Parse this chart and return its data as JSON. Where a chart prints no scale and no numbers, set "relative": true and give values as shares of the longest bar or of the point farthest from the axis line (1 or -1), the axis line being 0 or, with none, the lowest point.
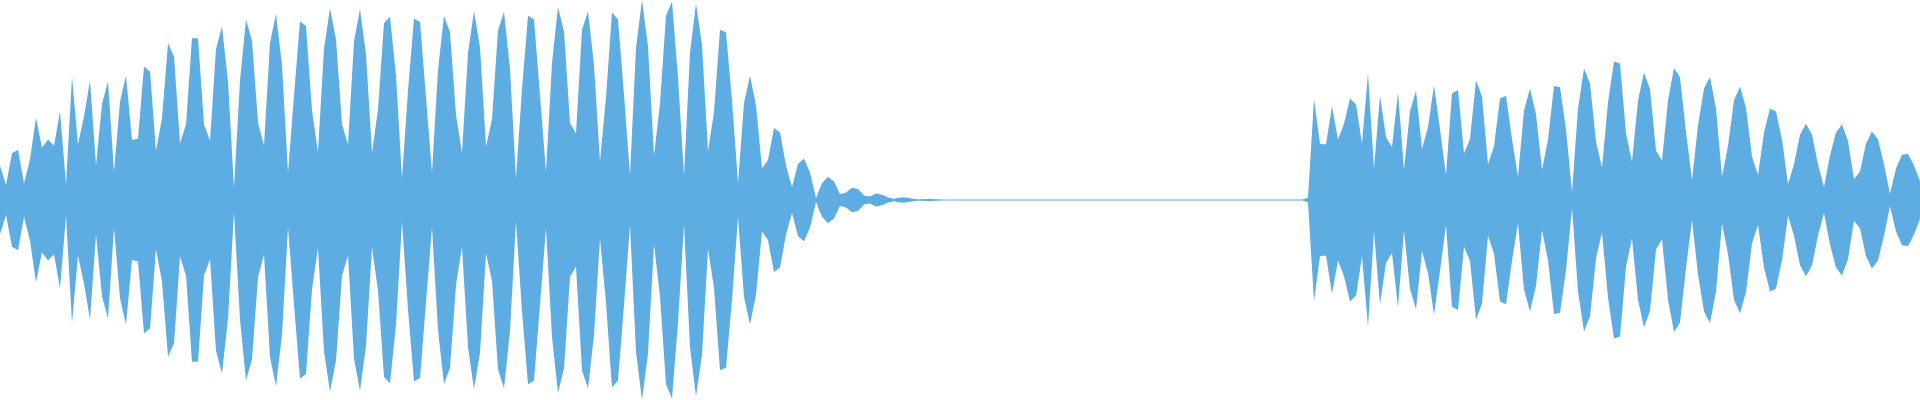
{
  "chart_data": {
    "type": "area",
    "relative": true,
    "categories": [
      null,
      null,
      null,
      null,
      null,
      null,
      null,
      null,
      null,
      null,
      null,
      null,
      null,
      null,
      null,
      null,
      null,
      null,
      null,
      null,
      null,
      null,
      null,
      null,
      null,
      null,
      null,
      null,
      null,
      null,
      null,
      null,
      null,
      null,
      null,
      null,
      null,
      null,
      null,
      null,
      null,
      null,
      null,
      null,
      null,
      null,
      null,
      null,
      null,
      null,
      null,
      null,
      null,
      null,
      null,
      null,
      null,
      null,
      null,
      null,
      null,
      null,
      null,
      null,
      null,
      null,
      null,
      null,
      null,
      null,
      null,
      null,
      null,
      null,
      null,
      null,
      null,
      null,
      null,
      null,
      null,
      null,
      null,
      null,
      null,
      null,
      null,
      null,
      null,
      null,
      null,
      null,
      null,
      null,
      null,
      null,
      null,
      null,
      null,
      null,
      null,
      null,
      null,
      null,
      null,
      null,
      null,
      null,
      null,
      null,
      null,
      null,
      null,
      null,
      null,
      null,
      null,
      null,
      null,
      null,
      null,
      null,
      null,
      null,
      null,
      null,
      null,
      null,
      null,
      null,
      null,
      null,
      null,
      null,
      null,
      null,
      null,
      null,
      null,
      null,
      null,
      null,
      null,
      null,
      null,
      null,
      null,
      null,
      null,
      null,
      null,
      null,
      null,
      null,
      null,
      null,
      null,
      null,
      null,
      null,
      null,
      null,
      null,
      null,
      null,
      null,
      null,
      null,
      null,
      null,
      null,
      null,
      null,
      null,
      null,
      null,
      null,
      null,
      null,
      null,
      null,
      null,
      null,
      null,
      null,
      null,
      null,
      null,
      null,
      null,
      null,
      null,
      null,
      null,
      null,
      null,
      null,
      null,
      null,
      null,
      null,
      null,
      null,
      null,
      null,
      null,
      null,
      null,
      null,
      null,
      null,
      null,
      null,
      null,
      null,
      null,
      null,
      null,
      null,
      null,
      null,
      null,
      null,
      null,
      null,
      null,
      null,
      null,
      null,
      null,
      null,
      null,
      null,
      null,
      null,
      null,
      null,
      null,
      null,
      null,
      null,
      null,
      null,
      null,
      null,
      null,
      null,
      null,
      null,
      null,
      null,
      null,
      null,
      null,
      null,
      null,
      null,
      null,
      null,
      null,
      null,
      null,
      null,
      null,
      null,
      null,
      null,
      null,
      null,
      null,
      null,
      null,
      null,
      null,
      null,
      null,
      null,
      null,
      null,
      null,
      null,
      null,
      null,
      null,
      null,
      null,
      null,
      null,
      null,
      null,
      null,
      null,
      null,
      null,
      null,
      null,
      null,
      null,
      null,
      null,
      null,
      null,
      null,
      null,
      null,
      null,
      null,
      null,
      null,
      null,
      null,
      null,
      null,
      null,
      null,
      null,
      null,
      null,
      null,
      null,
      null
    ],
    "ref_lines": [
      {
        "axis": "y",
        "value": 0,
        "color": "#5dade2"
      }
    ],
    "series": [
      {
        "color": "#5dade2",
        "values": [
          0.171,
          0.075,
          0.234,
          0.251,
          0.084,
          0.204,
          0.411,
          0.261,
          0.303,
          0.271,
          0.442,
          0.079,
          0.615,
          0.279,
          0.418,
          0.597,
          0.173,
          0.481,
          0.593,
          0.141,
          0.491,
          0.623,
          0.299,
          0.308,
          0.666,
          0.642,
          0.246,
          0.409,
          0.782,
          0.717,
          0.283,
          0.377,
          0.809,
          0.809,
          0.377,
          0.297,
          0.754,
          0.868,
          0.593,
          0.061,
          0.597,
          0.902,
          0.798,
          0.387,
          0.271,
          0.786,
          0.931,
          0.674,
          0.136,
          0.523,
          0.894,
          0.87,
          0.446,
          0.24,
          0.756,
          0.959,
          0.802,
          0.379,
          0.277,
          0.792,
          0.955,
          0.727,
          0.238,
          0.452,
          0.884,
          0.916,
          0.623,
          0.108,
          0.548,
          0.908,
          0.89,
          0.513,
          0.136,
          0.65,
          0.921,
          0.839,
          0.424,
          0.236,
          0.735,
          0.945,
          0.764,
          0.265,
          0.405,
          0.847,
          0.941,
          0.654,
          0.108,
          0.556,
          0.923,
          0.902,
          0.521,
          0.141,
          0.684,
          0.965,
          0.843,
          0.385,
          0.332,
          0.851,
          0.943,
          0.674,
          0.193,
          0.515,
          0.937,
          0.902,
          0.525,
          0.124,
          0.76,
          1,
          0.768,
          0.22,
          0.483,
          0.921,
          0.992,
          0.613,
          0.122,
          0.735,
          0.982,
          0.774,
          0.244,
          0.44,
          0.851,
          0.839,
          0.497,
          0.084,
          0.485,
          0.621,
          0.472,
          0.157,
          0.2,
          0.36,
          0.338,
          0.173,
          0.065,
          0.181,
          0.206,
          0.138,
          0.01,
          0.084,
          0.116,
          0.092,
          0.029,
          0.037,
          0.061,
          0.055,
          0.022,
          0.018,
          0.033,
          0.026,
          0.012,
          0.006,
          0.012,
          0.012,
          0.008,
          0.002,
          0.004,
          0.006,
          0.002,
          0,
          0,
          0,
          0,
          0,
          0,
          0,
          0,
          0,
          0,
          0,
          0,
          0,
          0,
          0,
          0,
          0,
          0,
          0,
          0,
          0,
          0,
          0,
          0,
          0,
          0,
          0,
          0,
          0,
          0,
          0,
          0,
          0,
          0,
          0,
          0,
          0,
          0,
          0,
          0,
          0,
          0,
          0,
          0,
          0,
          0,
          0,
          0,
          0,
          0,
          0,
          0,
          0,
          0,
          0,
          0,
          0,
          0,
          0,
          0,
          0,
          0.012,
          0.505,
          0.281,
          0.277,
          0.47,
          0.303,
          0.381,
          0.507,
          0.479,
          0.283,
          0.633,
          0.159,
          0.523,
          0.314,
          0.265,
          0.538,
          0.153,
          0.444,
          0.546,
          0.255,
          0.365,
          0.574,
          0.354,
          0.124,
          0.534,
          0.55,
          0.232,
          0.305,
          0.599,
          0.517,
          0.179,
          0.269,
          0.507,
          0.521,
          0.303,
          0.118,
          0.448,
          0.558,
          0.428,
          0.151,
          0.301,
          0.57,
          0.564,
          0.352,
          0.041,
          0.456,
          0.658,
          0.582,
          0.291,
          0.163,
          0.487,
          0.692,
          0.682,
          0.332,
          0.193,
          0.497,
          0.637,
          0.554,
          0.248,
          0.196,
          0.499,
          0.66,
          0.613,
          0.34,
          0.1,
          0.373,
          0.558,
          0.615,
          0.458,
          0.118,
          0.271,
          0.499,
          0.568,
          0.46,
          0.216,
          0.124,
          0.338,
          0.458,
          0.442,
          0.301,
          0.079,
          0.179,
          0.326,
          0.381,
          0.326,
          0.179,
          0.065,
          0.222,
          0.338,
          0.377,
          0.295,
          0.104,
          0.143,
          0.281,
          0.342,
          0.303,
          0.177,
          0.031,
          0.157,
          0.226,
          0.23,
          0.173,
          0.094
        ]
      },
      {
        "color": "#5dade2",
        "values": [
          -0.171,
          -0.075,
          -0.234,
          -0.251,
          -0.084,
          -0.204,
          -0.411,
          -0.261,
          -0.303,
          -0.271,
          -0.442,
          -0.079,
          -0.615,
          -0.279,
          -0.418,
          -0.597,
          -0.173,
          -0.481,
          -0.593,
          -0.141,
          -0.491,
          -0.623,
          -0.299,
          -0.308,
          -0.666,
          -0.642,
          -0.246,
          -0.409,
          -0.782,
          -0.717,
          -0.283,
          -0.377,
          -0.809,
          -0.809,
          -0.377,
          -0.297,
          -0.754,
          -0.868,
          -0.593,
          -0.061,
          -0.597,
          -0.902,
          -0.798,
          -0.387,
          -0.271,
          -0.786,
          -0.931,
          -0.674,
          -0.136,
          -0.523,
          -0.894,
          -0.87,
          -0.446,
          -0.24,
          -0.756,
          -0.959,
          -0.802,
          -0.379,
          -0.277,
          -0.792,
          -0.955,
          -0.727,
          -0.238,
          -0.452,
          -0.884,
          -0.916,
          -0.623,
          -0.108,
          -0.548,
          -0.908,
          -0.89,
          -0.513,
          -0.136,
          -0.65,
          -0.921,
          -0.839,
          -0.424,
          -0.236,
          -0.735,
          -0.945,
          -0.764,
          -0.265,
          -0.405,
          -0.847,
          -0.941,
          -0.654,
          -0.108,
          -0.556,
          -0.923,
          -0.902,
          -0.521,
          -0.141,
          -0.684,
          -0.965,
          -0.843,
          -0.385,
          -0.332,
          -0.851,
          -0.943,
          -0.674,
          -0.193,
          -0.515,
          -0.937,
          -0.902,
          -0.525,
          -0.124,
          -0.76,
          -1,
          -0.768,
          -0.22,
          -0.483,
          -0.921,
          -0.992,
          -0.613,
          -0.122,
          -0.735,
          -0.982,
          -0.774,
          -0.244,
          -0.44,
          -0.851,
          -0.839,
          -0.497,
          -0.084,
          -0.485,
          -0.621,
          -0.472,
          -0.157,
          -0.2,
          -0.36,
          -0.338,
          -0.173,
          -0.065,
          -0.181,
          -0.206,
          -0.138,
          -0.01,
          -0.084,
          -0.116,
          -0.092,
          -0.029,
          -0.037,
          -0.061,
          -0.055,
          -0.022,
          -0.018,
          -0.033,
          -0.026,
          -0.012,
          -0.006,
          -0.012,
          -0.012,
          -0.008,
          -0.002,
          -0.004,
          -0.006,
          -0.002,
          0,
          0,
          0,
          0,
          0,
          0,
          0,
          0,
          0,
          0,
          0,
          0,
          0,
          0,
          0,
          0,
          0,
          0,
          0,
          0,
          0,
          0,
          0,
          0,
          0,
          0,
          0,
          0,
          0,
          0,
          0,
          0,
          0,
          0,
          0,
          0,
          0,
          0,
          0,
          0,
          0,
          0,
          0,
          0,
          0,
          0,
          0,
          0,
          0,
          0,
          0,
          0,
          0,
          0,
          0,
          0,
          0,
          0,
          0,
          0,
          0,
          -0.012,
          -0.505,
          -0.281,
          -0.277,
          -0.47,
          -0.303,
          -0.381,
          -0.507,
          -0.479,
          -0.283,
          -0.633,
          -0.159,
          -0.523,
          -0.314,
          -0.265,
          -0.538,
          -0.153,
          -0.444,
          -0.546,
          -0.255,
          -0.365,
          -0.574,
          -0.354,
          -0.124,
          -0.534,
          -0.55,
          -0.232,
          -0.305,
          -0.599,
          -0.517,
          -0.179,
          -0.269,
          -0.507,
          -0.521,
          -0.303,
          -0.118,
          -0.448,
          -0.558,
          -0.428,
          -0.151,
          -0.301,
          -0.57,
          -0.564,
          -0.352,
          -0.041,
          -0.456,
          -0.658,
          -0.582,
          -0.291,
          -0.163,
          -0.487,
          -0.692,
          -0.682,
          -0.332,
          -0.193,
          -0.497,
          -0.637,
          -0.554,
          -0.248,
          -0.196,
          -0.499,
          -0.66,
          -0.613,
          -0.34,
          -0.1,
          -0.373,
          -0.558,
          -0.615,
          -0.458,
          -0.118,
          -0.271,
          -0.499,
          -0.568,
          -0.46,
          -0.216,
          -0.124,
          -0.338,
          -0.458,
          -0.442,
          -0.301,
          -0.079,
          -0.179,
          -0.326,
          -0.381,
          -0.326,
          -0.179,
          -0.065,
          -0.222,
          -0.338,
          -0.377,
          -0.295,
          -0.104,
          -0.143,
          -0.281,
          -0.342,
          -0.303,
          -0.177,
          -0.031,
          -0.157,
          -0.226,
          -0.23,
          -0.173,
          -0.094
        ]
      }
    ]
  }
}
